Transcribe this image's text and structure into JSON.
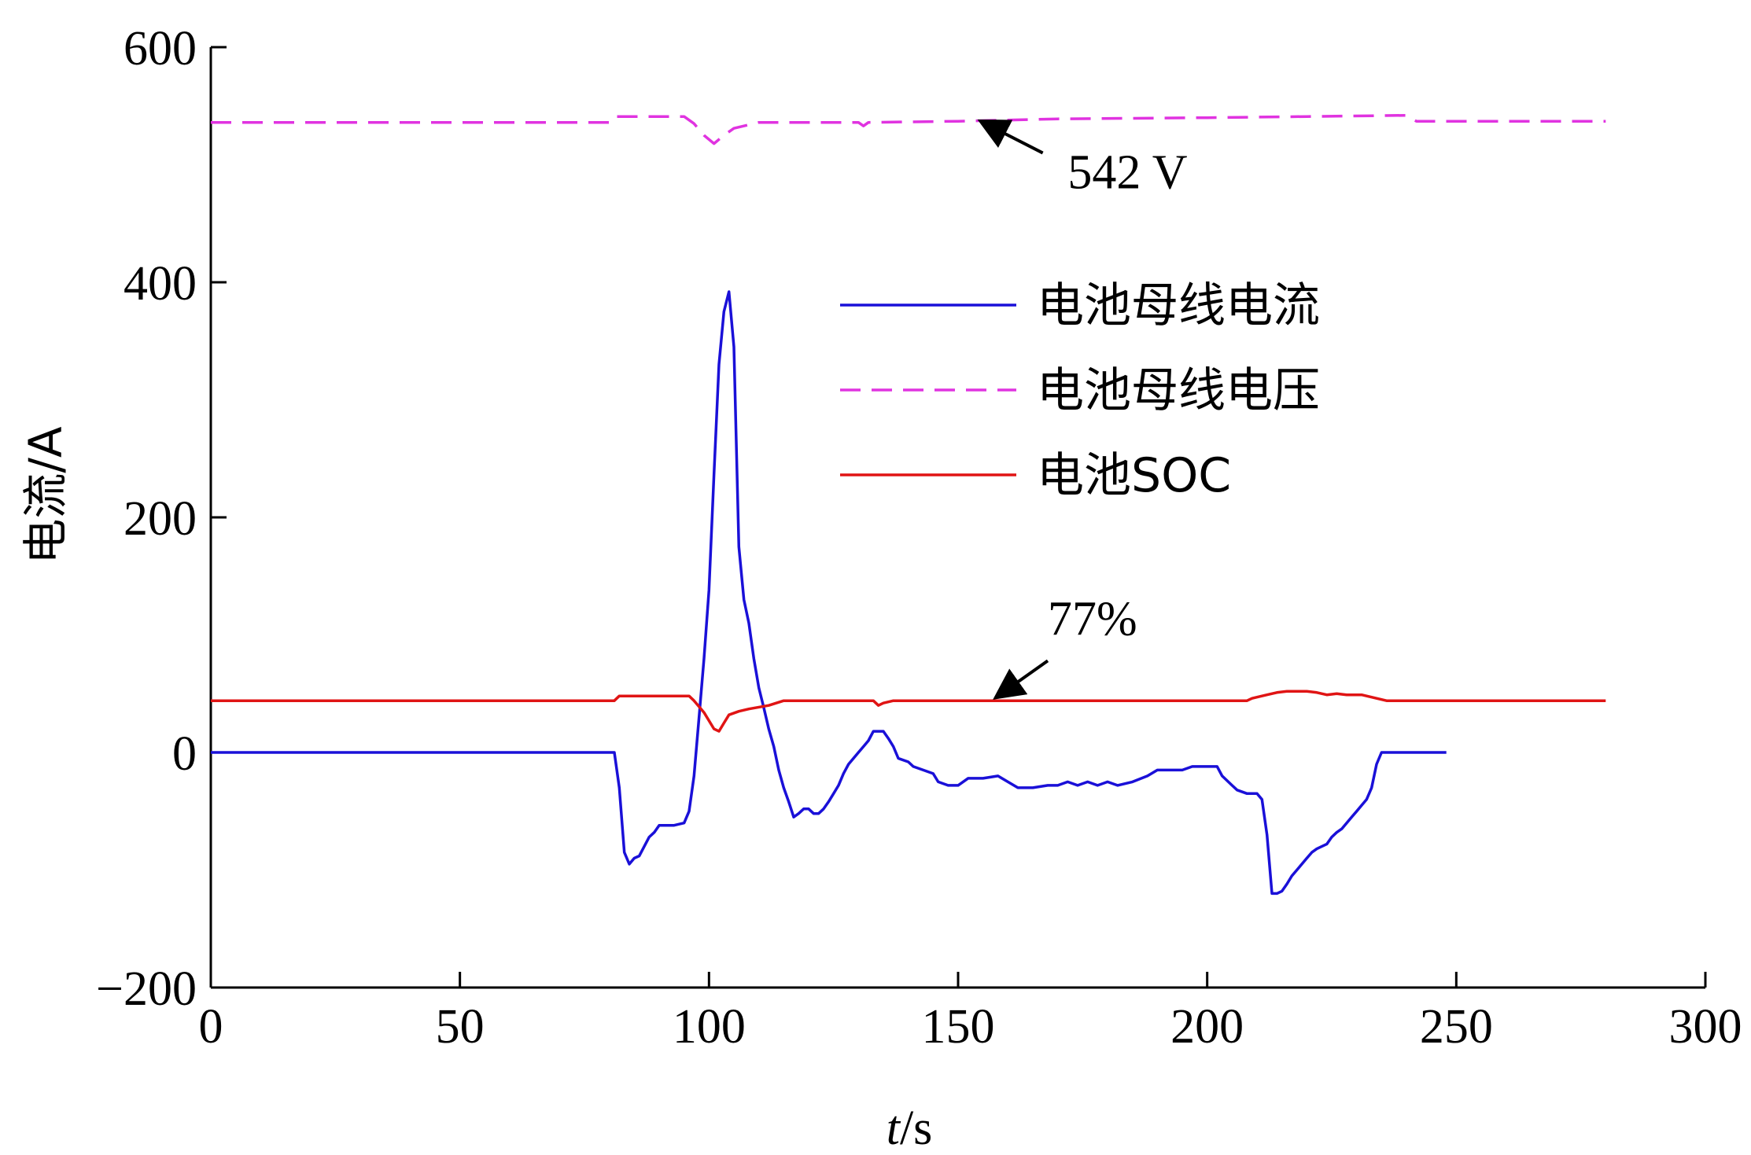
{
  "chart_data": {
    "type": "line",
    "xlabel_italic": "t",
    "xlabel_rest": "/s",
    "ylabel": "电流/A",
    "xlim": [
      0,
      300
    ],
    "ylim": [
      -200,
      600
    ],
    "xticks": [
      0,
      50,
      100,
      150,
      200,
      250,
      300
    ],
    "yticks": [
      -200,
      0,
      200,
      400,
      600
    ],
    "ytick_labels": [
      "−200",
      "0",
      "200",
      "400",
      "600"
    ],
    "grid": false,
    "legend_position": "center-right",
    "series": [
      {
        "name": "电池母线电流",
        "color": "#1a10d8",
        "dash": "solid",
        "points": [
          [
            0,
            0
          ],
          [
            81,
            0
          ],
          [
            82,
            -30
          ],
          [
            83,
            -85
          ],
          [
            84,
            -95
          ],
          [
            85,
            -90
          ],
          [
            86,
            -88
          ],
          [
            87,
            -80
          ],
          [
            88,
            -72
          ],
          [
            89,
            -68
          ],
          [
            90,
            -62
          ],
          [
            93,
            -62
          ],
          [
            95,
            -60
          ],
          [
            96,
            -50
          ],
          [
            97,
            -20
          ],
          [
            98,
            30
          ],
          [
            99,
            80
          ],
          [
            100,
            138
          ],
          [
            101,
            237
          ],
          [
            102,
            330
          ],
          [
            103,
            375
          ],
          [
            104,
            392
          ],
          [
            105,
            345
          ],
          [
            106,
            175
          ],
          [
            107,
            130
          ],
          [
            108,
            110
          ],
          [
            109,
            80
          ],
          [
            110,
            55
          ],
          [
            111,
            38
          ],
          [
            112,
            20
          ],
          [
            113,
            5
          ],
          [
            114,
            -15
          ],
          [
            115,
            -30
          ],
          [
            116,
            -42
          ],
          [
            117,
            -55
          ],
          [
            118,
            -52
          ],
          [
            119,
            -48
          ],
          [
            120,
            -48
          ],
          [
            121,
            -52
          ],
          [
            122,
            -52
          ],
          [
            123,
            -48
          ],
          [
            124,
            -42
          ],
          [
            125,
            -35
          ],
          [
            126,
            -28
          ],
          [
            127,
            -18
          ],
          [
            128,
            -10
          ],
          [
            129,
            -5
          ],
          [
            130,
            0
          ],
          [
            131,
            5
          ],
          [
            132,
            10
          ],
          [
            133,
            18
          ],
          [
            135,
            18
          ],
          [
            136,
            12
          ],
          [
            137,
            5
          ],
          [
            138,
            -5
          ],
          [
            140,
            -8
          ],
          [
            141,
            -12
          ],
          [
            143,
            -15
          ],
          [
            145,
            -18
          ],
          [
            146,
            -25
          ],
          [
            148,
            -28
          ],
          [
            150,
            -28
          ],
          [
            152,
            -22
          ],
          [
            155,
            -22
          ],
          [
            158,
            -20
          ],
          [
            160,
            -25
          ],
          [
            162,
            -30
          ],
          [
            165,
            -30
          ],
          [
            168,
            -28
          ],
          [
            170,
            -28
          ],
          [
            172,
            -25
          ],
          [
            174,
            -28
          ],
          [
            176,
            -25
          ],
          [
            178,
            -28
          ],
          [
            180,
            -25
          ],
          [
            182,
            -28
          ],
          [
            185,
            -25
          ],
          [
            188,
            -20
          ],
          [
            190,
            -15
          ],
          [
            192,
            -15
          ],
          [
            195,
            -15
          ],
          [
            197,
            -12
          ],
          [
            200,
            -12
          ],
          [
            202,
            -12
          ],
          [
            203,
            -20
          ],
          [
            205,
            -28
          ],
          [
            206,
            -32
          ],
          [
            208,
            -35
          ],
          [
            210,
            -35
          ],
          [
            211,
            -40
          ],
          [
            212,
            -70
          ],
          [
            213,
            -120
          ],
          [
            214,
            -120
          ],
          [
            215,
            -118
          ],
          [
            216,
            -112
          ],
          [
            217,
            -105
          ],
          [
            218,
            -100
          ],
          [
            219,
            -95
          ],
          [
            220,
            -90
          ],
          [
            221,
            -85
          ],
          [
            222,
            -82
          ],
          [
            223,
            -80
          ],
          [
            224,
            -78
          ],
          [
            225,
            -72
          ],
          [
            226,
            -68
          ],
          [
            227,
            -65
          ],
          [
            228,
            -60
          ],
          [
            229,
            -55
          ],
          [
            230,
            -50
          ],
          [
            231,
            -45
          ],
          [
            232,
            -40
          ],
          [
            233,
            -30
          ],
          [
            234,
            -10
          ],
          [
            235,
            0
          ],
          [
            248,
            0
          ]
        ]
      },
      {
        "name": "电池母线电压",
        "color": "#e033e0",
        "dash": "dashed",
        "points": [
          [
            0,
            536
          ],
          [
            80,
            536
          ],
          [
            81,
            541
          ],
          [
            95,
            541
          ],
          [
            97,
            535
          ],
          [
            99,
            525
          ],
          [
            101,
            518
          ],
          [
            103,
            525
          ],
          [
            105,
            531
          ],
          [
            110,
            536
          ],
          [
            130,
            536
          ],
          [
            131,
            533
          ],
          [
            132,
            536
          ],
          [
            150,
            537
          ],
          [
            170,
            539
          ],
          [
            200,
            540
          ],
          [
            220,
            541
          ],
          [
            240,
            542
          ],
          [
            242,
            537
          ],
          [
            280,
            537
          ]
        ]
      },
      {
        "name": "电池SOC",
        "color": "#e01414",
        "dash": "solid",
        "points": [
          [
            0,
            44
          ],
          [
            81,
            44
          ],
          [
            82,
            48
          ],
          [
            96,
            48
          ],
          [
            97,
            44
          ],
          [
            99,
            34
          ],
          [
            101,
            20
          ],
          [
            102,
            18
          ],
          [
            103,
            25
          ],
          [
            104,
            32
          ],
          [
            106,
            35
          ],
          [
            108,
            37
          ],
          [
            112,
            40
          ],
          [
            115,
            44
          ],
          [
            133,
            44
          ],
          [
            134,
            40
          ],
          [
            135,
            42
          ],
          [
            137,
            44
          ],
          [
            180,
            44
          ],
          [
            208,
            44
          ],
          [
            209,
            46
          ],
          [
            210,
            47
          ],
          [
            212,
            49
          ],
          [
            214,
            51
          ],
          [
            216,
            52
          ],
          [
            220,
            52
          ],
          [
            222,
            51
          ],
          [
            224,
            49
          ],
          [
            226,
            50
          ],
          [
            228,
            49
          ],
          [
            231,
            49
          ],
          [
            233,
            47
          ],
          [
            236,
            44
          ],
          [
            280,
            44
          ]
        ]
      }
    ],
    "annotations": [
      {
        "text": "542 V",
        "tip": [
          155,
          536
        ],
        "tail": [
          167,
          510
        ],
        "text_at": [
          172,
          480
        ]
      },
      {
        "text": "77%",
        "tip": [
          158,
          48
        ],
        "tail": [
          168,
          78
        ],
        "text_at": [
          168,
          100
        ]
      }
    ]
  }
}
